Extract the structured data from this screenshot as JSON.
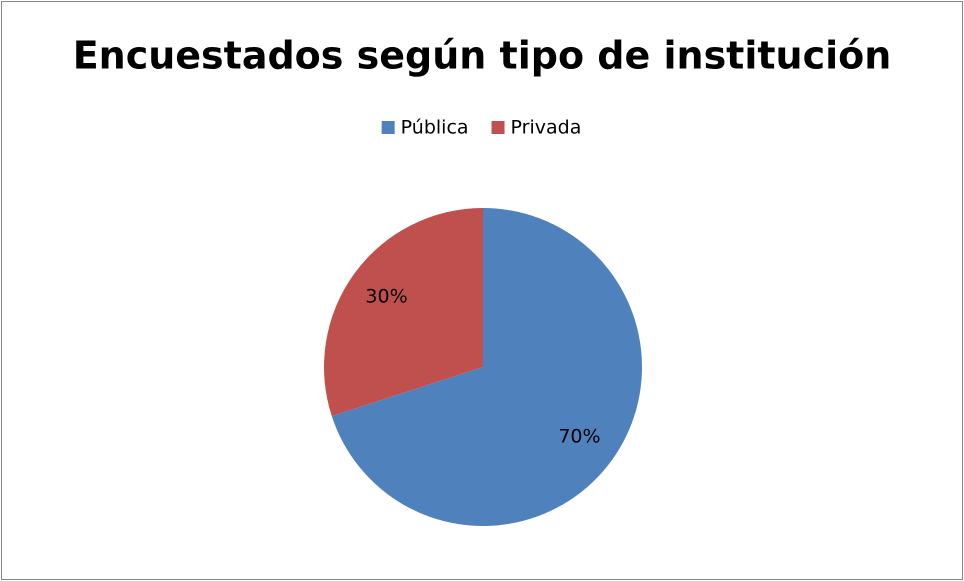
{
  "chart_data": {
    "type": "pie",
    "title": "Encuestados según tipo de institución",
    "categories": [
      "Pública",
      "Privada"
    ],
    "values": [
      70,
      30
    ],
    "value_labels": [
      "70%",
      "30%"
    ],
    "colors": [
      "#4f81bd",
      "#c0504d"
    ],
    "legend": "top"
  }
}
